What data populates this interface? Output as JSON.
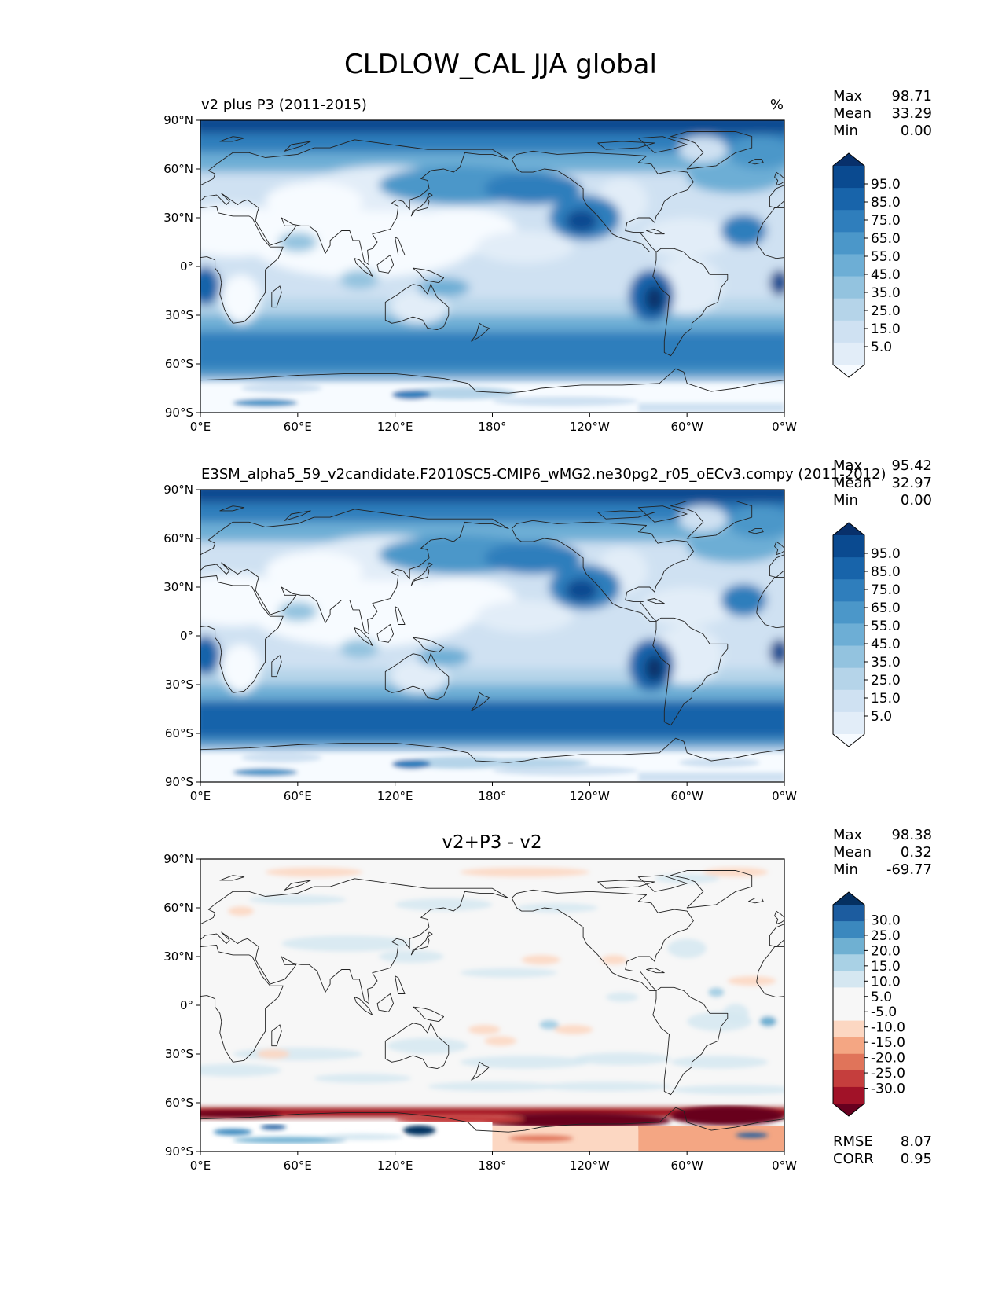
{
  "title": "CLDLOW_CAL JJA global",
  "units": "%",
  "axes": {
    "xticks": [
      "0°E",
      "60°E",
      "120°E",
      "180°",
      "120°W",
      "60°W",
      "0°W"
    ],
    "yticks": [
      "90°N",
      "60°N",
      "30°N",
      "0°",
      "30°S",
      "60°S",
      "90°S"
    ]
  },
  "stat_labels": {
    "max": "Max",
    "mean": "Mean",
    "min": "Min",
    "rmse": "RMSE",
    "corr": "CORR"
  },
  "colors": {
    "blues": [
      "#f7fbff",
      "#e2edf8",
      "#cfe1f2",
      "#b5d4e9",
      "#93c3df",
      "#6daed5",
      "#4b97c9",
      "#2f7ebc",
      "#1864aa",
      "#0a4a90",
      "#08306b"
    ],
    "diff": [
      "#67001f",
      "#a11228",
      "#c53e3d",
      "#e0745a",
      "#f4a683",
      "#fcd7c2",
      "#f7f7f7",
      "#f7f7f7",
      "#d5e7f1",
      "#a9d1e5",
      "#6fb0d2",
      "#3b88be",
      "#1c5c9f",
      "#053061"
    ],
    "coast": "#222222"
  },
  "chart_data": [
    {
      "type": "heatmap",
      "title": "v2 plus P3 (2011-2015)",
      "units": "%",
      "stats": {
        "max": "98.71",
        "mean": "33.29",
        "min": "0.00"
      },
      "colorbar_levels": [
        "95.0",
        "85.0",
        "75.0",
        "65.0",
        "55.0",
        "45.0",
        "35.0",
        "25.0",
        "15.0",
        "5.0"
      ],
      "field": "cloud"
    },
    {
      "type": "heatmap",
      "title": "E3SM_alpha5_59_v2candidate.F2010SC5-CMIP6_wMG2.ne30pg2_r05_oECv3.compy (2011-2012)",
      "units": "%",
      "stats": {
        "max": "95.42",
        "mean": "32.97",
        "min": "0.00"
      },
      "colorbar_levels": [
        "95.0",
        "85.0",
        "75.0",
        "65.0",
        "55.0",
        "45.0",
        "35.0",
        "25.0",
        "15.0",
        "5.0"
      ],
      "field": "cloud"
    },
    {
      "type": "heatmap",
      "title": "v2+P3 - v2",
      "stats": {
        "max": "98.38",
        "mean": "0.32",
        "min": "-69.77",
        "rmse": "8.07",
        "corr": "0.95"
      },
      "colorbar_levels": [
        "30.0",
        "25.0",
        "20.0",
        "15.0",
        "10.0",
        "5.0",
        "-5.0",
        "-10.0",
        "-15.0",
        "-20.0",
        "-25.0",
        "-30.0"
      ],
      "field": "diff"
    }
  ]
}
